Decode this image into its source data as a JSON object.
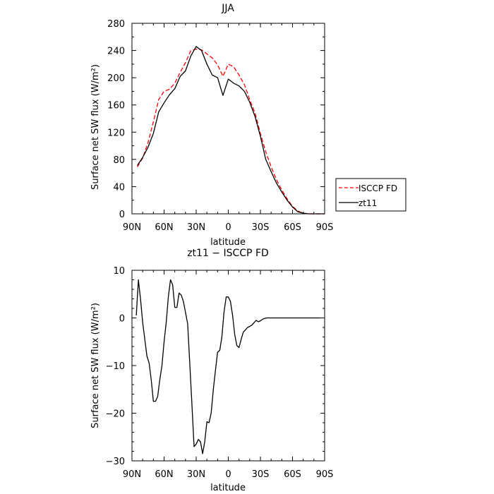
{
  "chart_data": [
    {
      "type": "line",
      "title": "JJA",
      "xlabel": "latitude",
      "ylabel": "Surface net SW flux (W/m²)",
      "xlim": [
        90,
        -90
      ],
      "ylim": [
        0,
        280
      ],
      "x_ticks": [
        90,
        60,
        30,
        0,
        -30,
        -60,
        -90
      ],
      "x_tick_labels": [
        "90N",
        "60N",
        "30N",
        "0",
        "30S",
        "60S",
        "90S"
      ],
      "y_ticks": [
        0,
        40,
        80,
        120,
        160,
        200,
        240,
        280
      ],
      "y_tick_labels": [
        "0",
        "40",
        "80",
        "120",
        "160",
        "200",
        "240",
        "280"
      ],
      "legend_position": "right-bottom",
      "series": [
        {
          "name": "ISCCP FD",
          "color": "#ff0000",
          "dash": "dashed",
          "x": [
            85,
            80,
            75,
            70,
            65,
            60,
            55,
            50,
            45,
            40,
            35,
            30,
            25,
            20,
            15,
            10,
            5,
            0,
            -5,
            -10,
            -15,
            -20,
            -25,
            -30,
            -35,
            -40,
            -45,
            -50,
            -55,
            -60,
            -65,
            -70,
            -75,
            -80,
            -85,
            -90
          ],
          "values": [
            69,
            82,
            105,
            135,
            168,
            180,
            183,
            192,
            208,
            222,
            240,
            242,
            241,
            235,
            229,
            219,
            202,
            220,
            216,
            204,
            190,
            168,
            148,
            118,
            91,
            69,
            50,
            35,
            22,
            11,
            4,
            1,
            0,
            0,
            0,
            0
          ]
        },
        {
          "name": "zt11",
          "color": "#000000",
          "dash": "solid",
          "x": [
            85,
            80,
            75,
            70,
            65,
            60,
            55,
            50,
            45,
            40,
            35,
            30,
            25,
            20,
            15,
            10,
            5,
            0,
            -5,
            -10,
            -15,
            -20,
            -25,
            -30,
            -35,
            -40,
            -45,
            -50,
            -55,
            -60,
            -65,
            -70,
            -75,
            -80,
            -85,
            -90
          ],
          "values": [
            71,
            83,
            98,
            118,
            150,
            163,
            175,
            184,
            202,
            210,
            232,
            246,
            240,
            220,
            204,
            200,
            174,
            198,
            192,
            188,
            180,
            164,
            143,
            114,
            80,
            62,
            45,
            32,
            20,
            10,
            3,
            1,
            0,
            0,
            0,
            0
          ]
        }
      ]
    },
    {
      "type": "line",
      "title": "zt11 − ISCCP FD",
      "xlabel": "latitude",
      "ylabel": "Surface net SW flux (W/m²)",
      "xlim": [
        90,
        -90
      ],
      "ylim": [
        -30,
        10
      ],
      "x_ticks": [
        90,
        60,
        30,
        0,
        -30,
        -60,
        -90
      ],
      "x_tick_labels": [
        "90N",
        "60N",
        "30N",
        "0",
        "30S",
        "60S",
        "90S"
      ],
      "y_ticks": [
        -30,
        -20,
        -10,
        0,
        10
      ],
      "y_tick_labels": [
        "−30",
        "−20",
        "−10",
        "0",
        "10"
      ],
      "series": [
        {
          "name": "",
          "color": "#000000",
          "dash": "solid",
          "x": [
            86,
            84,
            82,
            80,
            78,
            76,
            74,
            72,
            70,
            68,
            66,
            64,
            62,
            60,
            58,
            56,
            54,
            52,
            50,
            48,
            46,
            44,
            42,
            40,
            38,
            36,
            34,
            32,
            30,
            28,
            26,
            24,
            22,
            20,
            18,
            16,
            14,
            12,
            10,
            8,
            6,
            4,
            2,
            0,
            -2,
            -4,
            -6,
            -8,
            -10,
            -12,
            -14,
            -16,
            -18,
            -20,
            -22,
            -24,
            -26,
            -28,
            -30,
            -32,
            -34,
            -36,
            -38,
            -40,
            -42,
            -44,
            -46,
            -48,
            -50,
            -52,
            -54,
            -56,
            -58,
            -60,
            -62,
            -64,
            -66,
            -68,
            -70,
            -72,
            -74,
            -76,
            -78,
            -80,
            -82,
            -84,
            -86
          ],
          "values": [
            0.5,
            8,
            4,
            -1,
            -4.5,
            -8,
            -9.5,
            -13,
            -17.5,
            -17.5,
            -16.5,
            -13,
            -10,
            -5,
            -1,
            4.5,
            8,
            7,
            2.2,
            2.2,
            5.2,
            4.8,
            3.5,
            1.2,
            -1.2,
            -9.5,
            -18,
            -27,
            -26.5,
            -25.5,
            -26,
            -28.5,
            -26,
            -21.8,
            -22,
            -20,
            -15,
            -11,
            -7.2,
            -6.8,
            -4,
            1.2,
            4.4,
            4.4,
            3.5,
            0.5,
            -3.5,
            -5.8,
            -6.2,
            -4.5,
            -3,
            -2.5,
            -2,
            -1.8,
            -1.5,
            -1,
            -0.5,
            -0.8,
            -0.6,
            -0.3,
            -0.1,
            0,
            0,
            0,
            0,
            0,
            0,
            0,
            0,
            0,
            0,
            0,
            0,
            0,
            0,
            0,
            0,
            0,
            0,
            0,
            0,
            0,
            0,
            0,
            0,
            0,
            0
          ]
        }
      ]
    }
  ]
}
